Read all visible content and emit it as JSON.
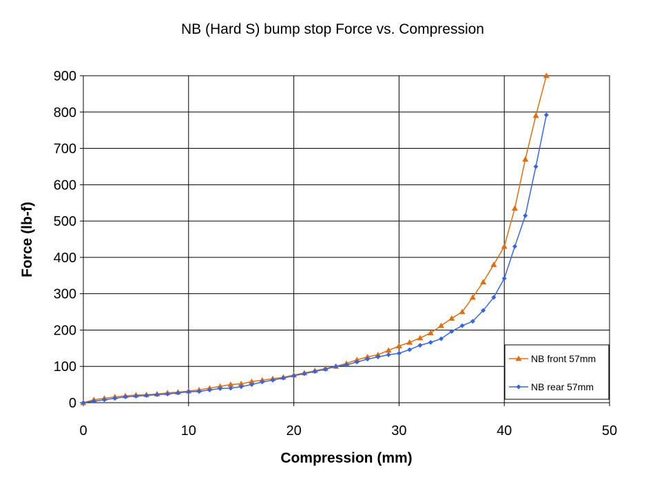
{
  "chart_data": {
    "type": "line",
    "title": "NB (Hard S) bump stop Force vs. Compression",
    "xlabel": "Compression (mm)",
    "ylabel": "Force (lb-f)",
    "xlim": [
      0,
      50
    ],
    "ylim": [
      0,
      900
    ],
    "xticks": [
      0,
      10,
      20,
      30,
      40,
      50
    ],
    "yticks": [
      0,
      100,
      200,
      300,
      400,
      500,
      600,
      700,
      800,
      900
    ],
    "grid": true,
    "legend_position": "right",
    "series": [
      {
        "name": "NB front 57mm",
        "color": "#E46C0A",
        "marker": "triangle",
        "x": [
          0,
          1,
          2,
          3,
          4,
          5,
          6,
          7,
          8,
          9,
          10,
          11,
          12,
          13,
          14,
          15,
          16,
          17,
          18,
          19,
          20,
          21,
          22,
          23,
          24,
          25,
          26,
          27,
          28,
          29,
          30,
          31,
          32,
          33,
          34,
          35,
          36,
          37,
          38,
          39,
          40,
          41,
          42,
          43,
          44
        ],
        "y": [
          0,
          8,
          12,
          16,
          19,
          21,
          22,
          24,
          27,
          29,
          32,
          35,
          40,
          45,
          50,
          52,
          58,
          62,
          66,
          70,
          76,
          82,
          88,
          94,
          100,
          108,
          118,
          126,
          132,
          144,
          156,
          166,
          178,
          192,
          212,
          232,
          250,
          290,
          332,
          380,
          430,
          535,
          670,
          790,
          900
        ]
      },
      {
        "name": "NB rear 57mm",
        "color": "#3366E6",
        "marker": "diamond",
        "x": [
          0,
          1,
          2,
          3,
          4,
          5,
          6,
          7,
          8,
          9,
          10,
          11,
          12,
          13,
          14,
          15,
          16,
          17,
          18,
          19,
          20,
          21,
          22,
          23,
          24,
          25,
          26,
          27,
          28,
          29,
          30,
          31,
          32,
          33,
          34,
          35,
          36,
          37,
          38,
          39,
          40,
          41,
          42,
          43,
          44
        ],
        "y": [
          0,
          4,
          8,
          12,
          16,
          18,
          20,
          22,
          24,
          27,
          30,
          31,
          35,
          39,
          40,
          44,
          50,
          57,
          62,
          68,
          74,
          80,
          86,
          92,
          100,
          104,
          112,
          120,
          126,
          132,
          136,
          146,
          158,
          166,
          176,
          196,
          212,
          224,
          254,
          290,
          342,
          430,
          515,
          650,
          792
        ]
      }
    ]
  }
}
